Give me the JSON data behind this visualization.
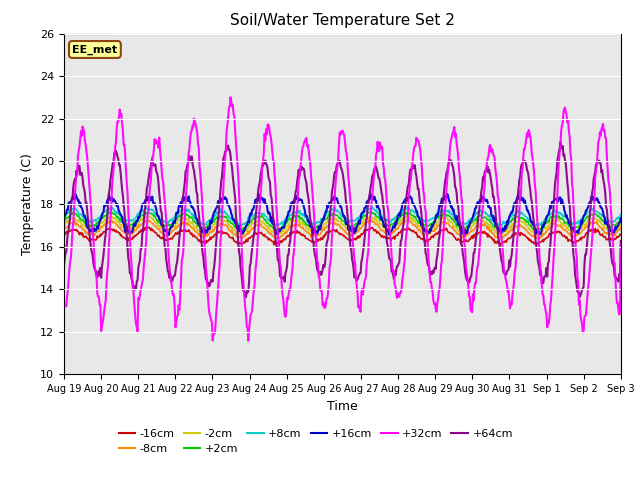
{
  "title": "Soil/Water Temperature Set 2",
  "xlabel": "Time",
  "ylabel": "Temperature (C)",
  "ylim": [
    10,
    26
  ],
  "yticks": [
    10,
    12,
    14,
    16,
    18,
    20,
    22,
    24,
    26
  ],
  "bg_color": "#e8e8e8",
  "annotation_text": "EE_met",
  "annotation_bg": "#ffff99",
  "annotation_border": "#8B4513",
  "series_order": [
    "-16cm",
    "-8cm",
    "-2cm",
    "+2cm",
    "+8cm",
    "+16cm",
    "+32cm",
    "+64cm"
  ],
  "colors": {
    "-16cm": "#cc0000",
    "-8cm": "#ff8800",
    "-2cm": "#cccc00",
    "+2cm": "#00cc00",
    "+8cm": "#00cccc",
    "+16cm": "#0000cc",
    "+32cm": "#ff00ff",
    "+64cm": "#880088"
  },
  "lw": {
    "-16cm": 1.2,
    "-8cm": 1.2,
    "-2cm": 1.2,
    "+2cm": 1.2,
    "+8cm": 1.2,
    "+16cm": 1.5,
    "+32cm": 1.5,
    "+64cm": 1.5
  },
  "base_temps": {
    "-16cm": 16.5,
    "-8cm": 16.8,
    "-2cm": 17.0,
    "+2cm": 17.2,
    "+8cm": 17.4,
    "+16cm": 17.5,
    "+32cm": 17.2,
    "+64cm": 17.2
  },
  "amplitudes": {
    "-16cm": 0.25,
    "-8cm": 0.3,
    "-2cm": 0.3,
    "+2cm": 0.3,
    "+8cm": 0.3,
    "+16cm": 0.8,
    "+32cm": 4.5,
    "+64cm": 3.0
  },
  "n_days": 15,
  "legend_row1": [
    "-16cm",
    "-8cm",
    "-2cm",
    "+2cm",
    "+8cm",
    "+16cm"
  ],
  "legend_row2": [
    "+32cm",
    "+64cm"
  ]
}
